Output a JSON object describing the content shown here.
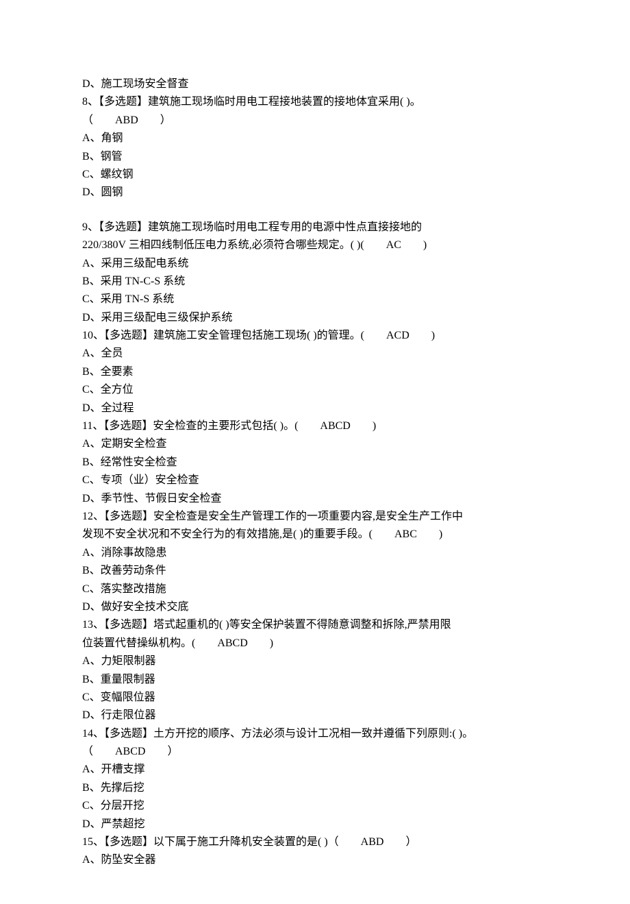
{
  "background_color": "#ffffff",
  "text_color": "#000000",
  "font_size": 16,
  "lines": {
    "q7_D": "D、施工现场安全督查",
    "q8_stem": "8、【多选题】建筑施工现场临时用电工程接地装置的接地体宜采用( )。",
    "q8_answer": "（　　ABD　　）",
    "q8_A": "A、角钢",
    "q8_B": "B、钢管",
    "q8_C": "C、螺纹钢",
    "q8_D": "D、圆钢",
    "q9_stem1": "9、【多选题】建筑施工现场临时用电工程专用的电源中性点直接接地的",
    "q9_stem2": "220/380V 三相四线制低压电力系统,必须符合哪些规定。( )(　　AC　　)",
    "q9_A": "A、采用三级配电系统",
    "q9_B": "B、采用 TN-C-S 系统",
    "q9_C": "C、采用 TN-S 系统",
    "q9_D": "D、采用三级配电三级保护系统",
    "q10_stem": "10、【多选题】建筑施工安全管理包括施工现场( )的管理。(　　ACD　　)",
    "q10_A": "A、全员",
    "q10_B": "B、全要素",
    "q10_C": "C、全方位",
    "q10_D": "D、全过程",
    "q11_stem": "11、【多选题】安全检查的主要形式包括( )。(　　ABCD　　)",
    "q11_A": "A、定期安全检查",
    "q11_B": "B、经常性安全检查",
    "q11_C": "C、专项（业）安全检查",
    "q11_D": "D、季节性、节假日安全检查",
    "q12_stem1": "12、【多选题】安全检查是安全生产管理工作的一项重要内容,是安全生产工作中",
    "q12_stem2": "发现不安全状况和不安全行为的有效措施,是( )的重要手段。(　　ABC　　)",
    "q12_A": "A、消除事故隐患",
    "q12_B": "B、改善劳动条件",
    "q12_C": "C、落实整改措施",
    "q12_D": "D、做好安全技术交底",
    "q13_stem1": "13、【多选题】塔式起重机的( )等安全保护装置不得随意调整和拆除,严禁用限",
    "q13_stem2": "位装置代替操纵机构。(　　ABCD　　)",
    "q13_A": "A、力矩限制器",
    "q13_B": "B、重量限制器",
    "q13_C": "C、变幅限位器",
    "q13_D": "D、行走限位器",
    "q14_stem": "14、【多选题】土方开挖的顺序、方法必须与设计工况相一致并遵循下列原则:( )。",
    "q14_answer": "（　　ABCD　　）",
    "q14_A": "A、开槽支撑",
    "q14_B": "B、先撑后挖",
    "q14_C": "C、分层开挖",
    "q14_D": "D、严禁超挖",
    "q15_stem": "15、【多选题】以下属于施工升降机安全装置的是( )（　　ABD　　）",
    "q15_A": "A、防坠安全器"
  }
}
